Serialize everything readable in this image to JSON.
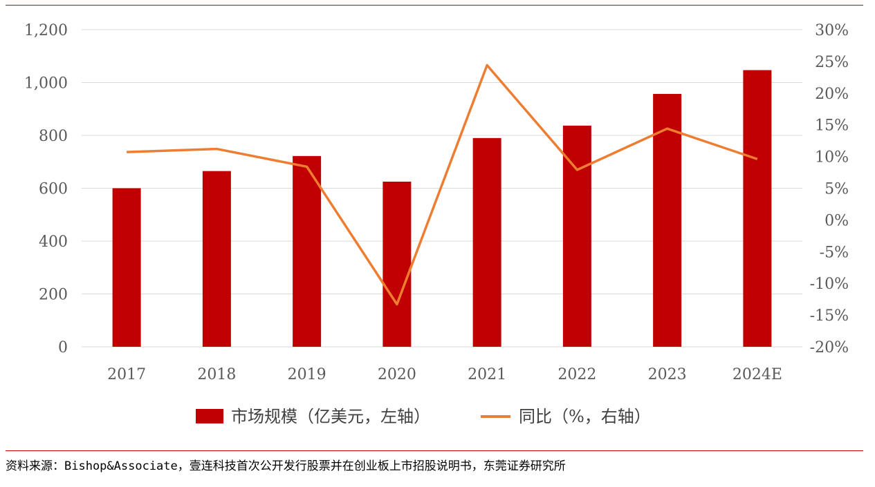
{
  "chart_data": {
    "type": "bar",
    "categories": [
      "2017",
      "2018",
      "2019",
      "2020",
      "2021",
      "2022",
      "2023",
      "2024E"
    ],
    "series": [
      {
        "name": "市场规模（亿美元，左轴）",
        "type": "bar",
        "axis": "left",
        "color": "#c00000",
        "values": [
          600,
          665,
          722,
          625,
          790,
          837,
          957,
          1047
        ]
      },
      {
        "name": "同比（%，右轴）",
        "type": "line",
        "axis": "right",
        "color": "#ed7d31",
        "values": [
          10.7,
          11.2,
          8.4,
          -13.3,
          24.4,
          7.9,
          14.4,
          9.6
        ]
      }
    ],
    "y_left": {
      "range": [
        0,
        1200
      ],
      "ticks": [
        "0",
        "200",
        "400",
        "600",
        "800",
        "1,000",
        "1,200"
      ]
    },
    "y_right": {
      "range": [
        -20,
        30
      ],
      "ticks": [
        "-20%",
        "-15%",
        "-10%",
        "-5%",
        "0%",
        "5%",
        "10%",
        "15%",
        "20%",
        "25%",
        "30%"
      ]
    },
    "grid": true,
    "legend_position": "bottom"
  },
  "source_text": "资料来源：Bishop&Associate，壹连科技首次公开发行股票并在创业板上市招股说明书，东莞证券研究所"
}
